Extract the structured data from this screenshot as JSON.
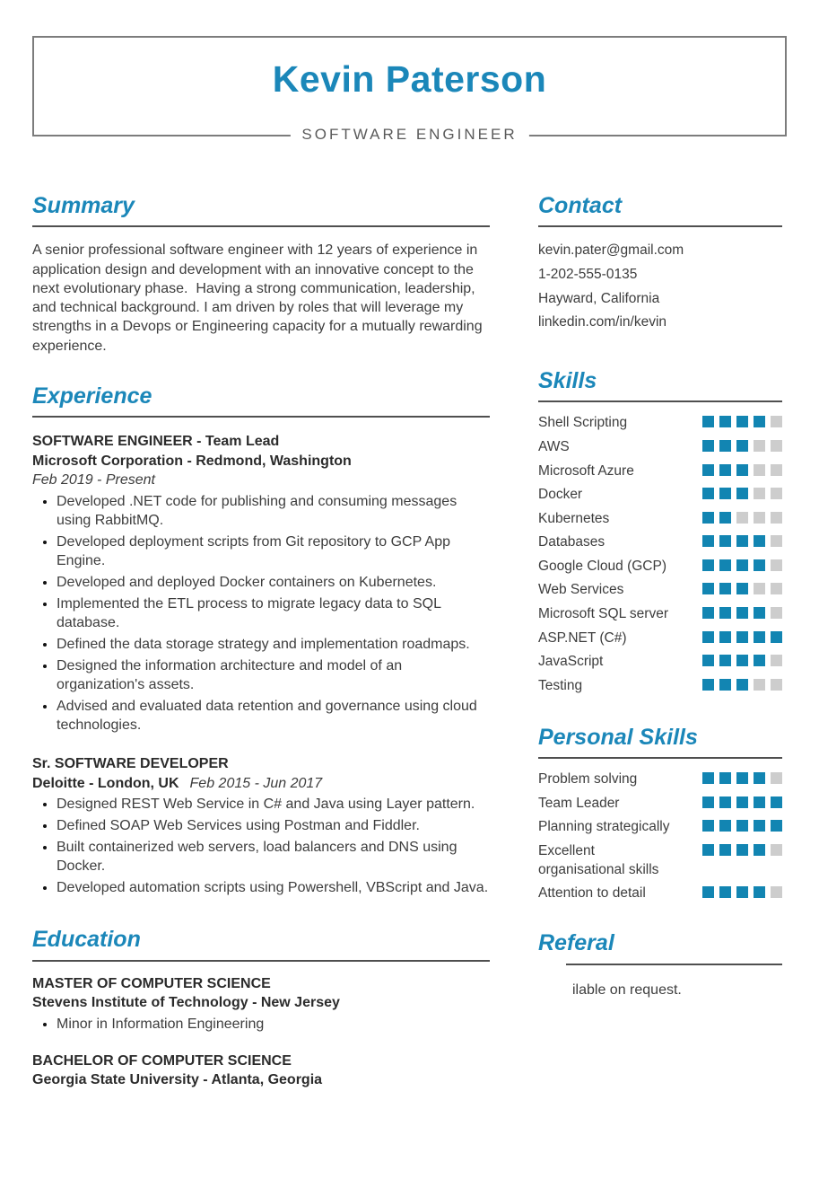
{
  "colors": {
    "accent": "#1b87b9",
    "rule": "#4f4f4f",
    "text": "#3d3d3d",
    "title": "#2b2b2b",
    "sq-on": "#1285b2",
    "sq-off": "#cdcdcd",
    "border": "#7c7c7c",
    "subtitle": "#5a5a5a"
  },
  "header": {
    "name": "Kevin Paterson",
    "title": "SOFTWARE ENGINEER"
  },
  "summary": {
    "heading": "Summary",
    "text": "A senior professional software engineer with 12 years of experience in application design and development with an innovative concept to the next evolutionary phase.  Having a strong communication, leadership, and technical background. I am driven by roles that will leverage my strengths in a Devops or Engineering capacity for a mutually rewarding experience."
  },
  "experience": {
    "heading": "Experience",
    "entries": [
      {
        "title": "SOFTWARE ENGINEER - Team Lead",
        "company": "Microsoft Corporation - Redmond, Washington",
        "date": "Feb 2019 - Present",
        "bullets": [
          "Developed .NET code for publishing and consuming messages using RabbitMQ.",
          "Developed deployment scripts from Git repository to GCP App Engine.",
          "Developed and deployed Docker containers on Kubernetes.",
          "Implemented the ETL process to migrate legacy data to SQL database.",
          "Defined the data storage strategy and implementation roadmaps.",
          "Designed the information architecture and model of an organization's assets.",
          "Advised and evaluated data retention and governance using cloud technologies."
        ]
      },
      {
        "title": "Sr. SOFTWARE DEVELOPER",
        "company": "Deloitte - London, UK",
        "date": "Feb 2015 - Jun 2017",
        "bullets": [
          "Designed REST Web Service in C# and Java using Layer pattern.",
          "Defined SOAP Web Services using Postman and Fiddler.",
          "Built containerized web servers, load balancers and DNS using Docker.",
          "Developed automation scripts using Powershell, VBScript and Java."
        ]
      }
    ]
  },
  "education": {
    "heading": "Education",
    "entries": [
      {
        "degree": "MASTER OF COMPUTER SCIENCE",
        "school": "Stevens Institute of Technology - New Jersey",
        "bullet": "Minor in Information Engineering"
      },
      {
        "degree": "BACHELOR OF COMPUTER SCIENCE",
        "school": "Georgia State University - Atlanta, Georgia"
      }
    ]
  },
  "contact": {
    "heading": "Contact",
    "items": [
      "kevin.pater@gmail.com",
      "1-202-555-0135",
      "Hayward, California",
      "linkedin.com/in/kevin"
    ]
  },
  "skills": {
    "heading": "Skills",
    "max_level": 5,
    "items": [
      {
        "name": "Shell Scripting",
        "level": 4
      },
      {
        "name": "AWS",
        "level": 3
      },
      {
        "name": "Microsoft Azure",
        "level": 3
      },
      {
        "name": "Docker",
        "level": 3
      },
      {
        "name": "Kubernetes",
        "level": 2
      },
      {
        "name": "Databases",
        "level": 4
      },
      {
        "name": "Google Cloud (GCP)",
        "level": 4
      },
      {
        "name": "Web Services",
        "level": 3
      },
      {
        "name": "Microsoft SQL server",
        "level": 4
      },
      {
        "name": "ASP.NET (C#)",
        "level": 5
      },
      {
        "name": "JavaScript",
        "level": 4
      },
      {
        "name": "Testing",
        "level": 3
      }
    ]
  },
  "personal_skills": {
    "heading": "Personal Skills",
    "items": [
      {
        "name": "Problem solving",
        "level": 4
      },
      {
        "name": "Team Leader",
        "level": 5
      },
      {
        "name": "Planning strategically",
        "level": 5
      },
      {
        "name": "Excellent organisational skills",
        "level": 4
      },
      {
        "name": "Attention to detail",
        "level": 4
      }
    ]
  },
  "referral": {
    "heading": "Referal",
    "text": "ilable on request."
  }
}
